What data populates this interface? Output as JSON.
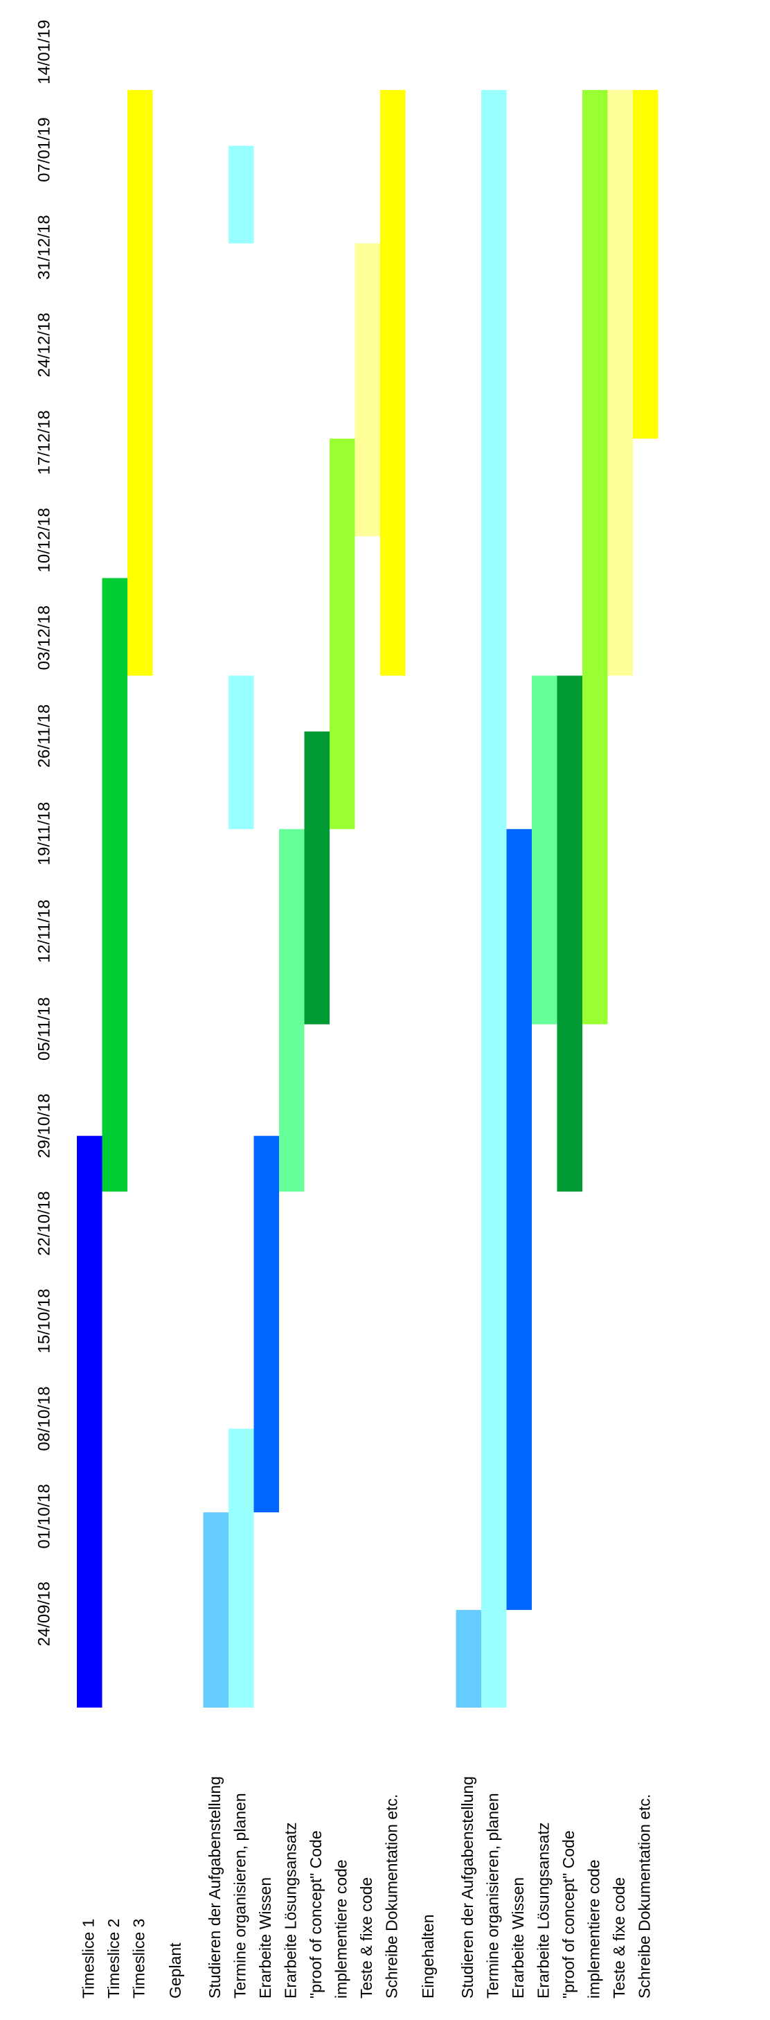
{
  "chart_data": {
    "type": "gantt",
    "date_axis": {
      "tick_labels": [
        "24/09/18",
        "01/10/18",
        "08/10/18",
        "15/10/18",
        "22/10/18",
        "29/10/18",
        "05/11/18",
        "12/11/18",
        "19/11/18",
        "26/11/18",
        "03/12/18",
        "10/12/18",
        "17/12/18",
        "24/12/18",
        "31/12/18",
        "07/01/19",
        "14/01/19"
      ],
      "tick_dates": [
        "2018-09-24",
        "2018-10-01",
        "2018-10-08",
        "2018-10-15",
        "2018-10-22",
        "2018-10-29",
        "2018-11-05",
        "2018-11-12",
        "2018-11-19",
        "2018-11-26",
        "2018-12-03",
        "2018-12-10",
        "2018-12-17",
        "2018-12-24",
        "2018-12-31",
        "2019-01-07",
        "2019-01-14"
      ],
      "range": [
        "2018-09-20",
        "2019-01-14"
      ]
    },
    "groups": [
      {
        "label": "",
        "rows": [
          {
            "label": "Timeslice 1",
            "start": "2018-09-20",
            "end": "2018-10-31",
            "color": "#0000ff"
          },
          {
            "label": "Timeslice 2",
            "start": "2018-10-27",
            "end": "2018-12-10",
            "color": "#00cc33"
          },
          {
            "label": "Timeslice 3",
            "start": "2018-12-03",
            "end": "2019-01-14",
            "color": "#ffff00"
          }
        ]
      },
      {
        "label": "Geplant",
        "rows": [
          {
            "label": "Studieren der Aufgabenstellung",
            "start": "2018-09-20",
            "end": "2018-10-04",
            "color": "#66ccff"
          },
          {
            "label": "Termine organisieren, planen",
            "segments": [
              {
                "start": "2018-09-20",
                "end": "2018-10-10"
              },
              {
                "start": "2018-11-22",
                "end": "2018-12-03"
              },
              {
                "start": "2019-01-03",
                "end": "2019-01-10"
              }
            ],
            "color": "#99ffff"
          },
          {
            "label": "Erarbeite Wissen",
            "start": "2018-10-04",
            "end": "2018-10-31",
            "color": "#0066ff"
          },
          {
            "label": "Erarbeite Lösungsansatz",
            "start": "2018-10-27",
            "end": "2018-11-22",
            "color": "#66ff99"
          },
          {
            "label": "\"proof of concept\" Code",
            "start": "2018-11-08",
            "end": "2018-11-29",
            "color": "#009933"
          },
          {
            "label": "implementiere code",
            "start": "2018-11-22",
            "end": "2018-12-20",
            "color": "#99ff33"
          },
          {
            "label": "Teste & fixe code",
            "start": "2018-12-13",
            "end": "2019-01-03",
            "color": "#ffff99"
          },
          {
            "label": "Schreibe Dokumentation etc.",
            "start": "2018-12-03",
            "end": "2019-01-14",
            "color": "#ffff00"
          }
        ]
      },
      {
        "label": "Eingehalten",
        "rows": [
          {
            "label": "Studieren der Aufgabenstellung",
            "start": "2018-09-20",
            "end": "2018-09-27",
            "color": "#66ccff"
          },
          {
            "label": "Termine organisieren, planen",
            "start": "2018-09-20",
            "end": "2019-01-14",
            "color": "#99ffff"
          },
          {
            "label": "Erarbeite Wissen",
            "start": "2018-09-27",
            "end": "2018-11-22",
            "color": "#0066ff"
          },
          {
            "label": "Erarbeite Lösungsansatz",
            "start": "2018-11-08",
            "end": "2018-12-03",
            "color": "#66ff99"
          },
          {
            "label": "\"proof of concept\" Code",
            "start": "2018-10-27",
            "end": "2018-12-03",
            "color": "#009933"
          },
          {
            "label": "implementiere code",
            "start": "2018-11-08",
            "end": "2019-01-14",
            "color": "#99ff33"
          },
          {
            "label": "Teste & fixe code",
            "start": "2018-12-03",
            "end": "2019-01-14",
            "color": "#ffff99"
          },
          {
            "label": "Schreibe Dokumentation etc.",
            "start": "2018-12-20",
            "end": "2019-01-14",
            "color": "#ffff00"
          }
        ]
      }
    ],
    "grid": false,
    "legend": "none",
    "orientation": "rotated-90-ccw"
  }
}
